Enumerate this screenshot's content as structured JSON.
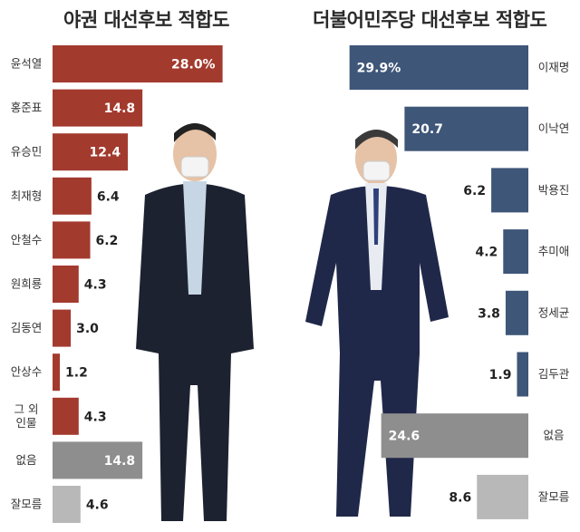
{
  "chart_data": [
    {
      "type": "bar",
      "title": "야권 대선후보 적합도",
      "categories": [
        "윤석열",
        "홍준표",
        "유승민",
        "최재형",
        "안철수",
        "원희룡",
        "김동연",
        "안상수",
        "그 외\n인물",
        "없음",
        "잘모름"
      ],
      "values": [
        28.0,
        14.8,
        12.4,
        6.4,
        6.2,
        4.3,
        3.0,
        1.2,
        4.3,
        14.8,
        4.6
      ],
      "value_labels": [
        "28.0%",
        "14.8",
        "12.4",
        "6.4",
        "6.2",
        "4.3",
        "3.0",
        "1.2",
        "4.3",
        "14.8",
        "4.6"
      ],
      "colors": [
        "#a33a2e",
        "#a33a2e",
        "#a33a2e",
        "#a33a2e",
        "#a33a2e",
        "#a33a2e",
        "#a33a2e",
        "#a33a2e",
        "#a33a2e",
        "#8e8e8e",
        "#b8b8b8"
      ],
      "orientation": "horizontal"
    },
    {
      "type": "bar",
      "title": "더불어민주당 대선후보 적합도",
      "categories": [
        "이재명",
        "이낙연",
        "박용진",
        "추미애",
        "정세균",
        "김두관",
        "없음",
        "잘모름"
      ],
      "values": [
        29.9,
        20.7,
        6.2,
        4.2,
        3.8,
        1.9,
        24.6,
        8.6
      ],
      "value_labels": [
        "29.9%",
        "20.7",
        "6.2",
        "4.2",
        "3.8",
        "1.9",
        "24.6",
        "8.6"
      ],
      "colors": [
        "#3e5678",
        "#3e5678",
        "#3e5678",
        "#3e5678",
        "#3e5678",
        "#3e5678",
        "#8e8e8e",
        "#b8b8b8"
      ],
      "orientation": "horizontal-right-aligned"
    }
  ]
}
